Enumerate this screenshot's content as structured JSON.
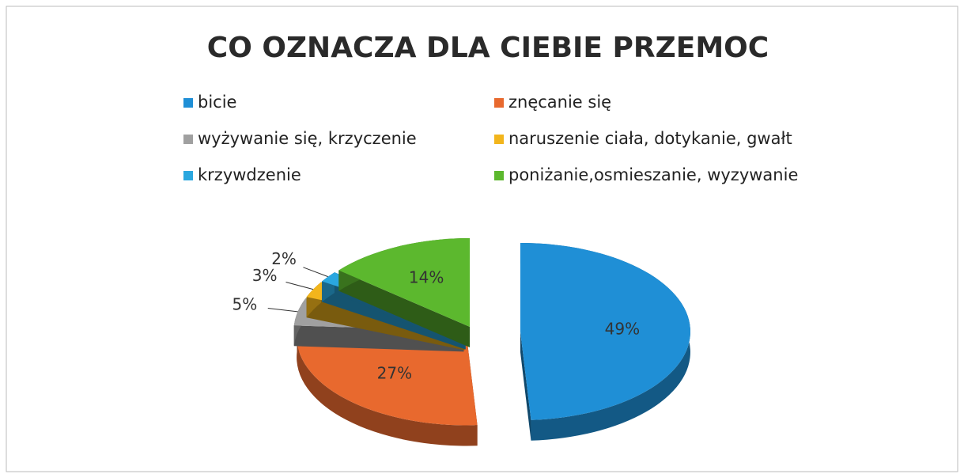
{
  "chart_data": {
    "type": "pie",
    "title": "CO OZNACZA DLA CIEBIE PRZEMOC",
    "categories": [
      "bicie",
      "znęcanie się",
      "wyżywanie się, krzyczenie",
      "naruszenie ciała, dotykanie, gwałt",
      "krzywdzenie",
      "poniżanie,osmieszanie, wyzywanie"
    ],
    "values": [
      49,
      27,
      5,
      3,
      2,
      14
    ],
    "value_labels": [
      "49%",
      "27%",
      "5%",
      "3%",
      "2%",
      "14%"
    ],
    "colors": [
      "#1f8fd6",
      "#e8692e",
      "#a0a0a0",
      "#f2b51c",
      "#2aa7df",
      "#5cb82e"
    ],
    "legend": "top"
  }
}
